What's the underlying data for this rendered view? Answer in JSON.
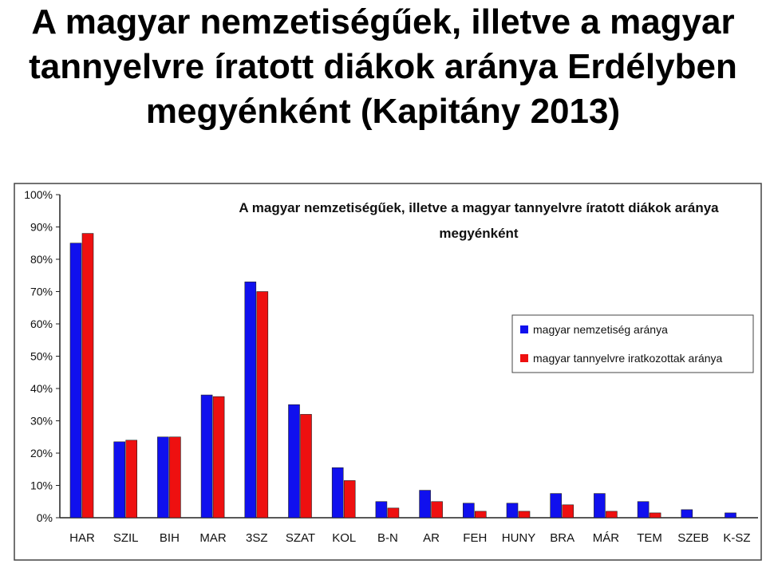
{
  "slide": {
    "title_lines": [
      "A magyar nemzetiségűek, illetve a magyar",
      "tannyelvre íratott diákok aránya Erdélyben",
      "megyénként (Kapitány 2013)"
    ]
  },
  "chart_data": {
    "type": "bar",
    "title_lines": [
      "A magyar nemzetiségűek, illetve a magyar tannyelvre íratott diákok aránya",
      "megyénként"
    ],
    "categories": [
      "HAR",
      "SZIL",
      "BIH",
      "MAR",
      "3SZ",
      "SZAT",
      "KOL",
      "B-N",
      "AR",
      "FEH",
      "HUNY",
      "BRA",
      "MÁR",
      "TEM",
      "SZEB",
      "K-SZ"
    ],
    "series": [
      {
        "name": "magyar nemzetiség aránya",
        "color": "#1010ee",
        "values": [
          85,
          23.5,
          25,
          38,
          73,
          35,
          15.5,
          5,
          8.5,
          4.5,
          4.5,
          7.5,
          7.5,
          5,
          2.5,
          1.5
        ]
      },
      {
        "name": "magyar tannyelvre iratkozottak aránya",
        "color": "#ee1010",
        "values": [
          88,
          24,
          25,
          37.5,
          70,
          32,
          11.5,
          3,
          5,
          2,
          2,
          4,
          2,
          1.5,
          0,
          0
        ]
      }
    ],
    "yticks": [
      "0%",
      "10%",
      "20%",
      "30%",
      "40%",
      "50%",
      "60%",
      "70%",
      "80%",
      "90%",
      "100%"
    ],
    "ylim": [
      0,
      100
    ],
    "grid": false,
    "legend": "right"
  }
}
